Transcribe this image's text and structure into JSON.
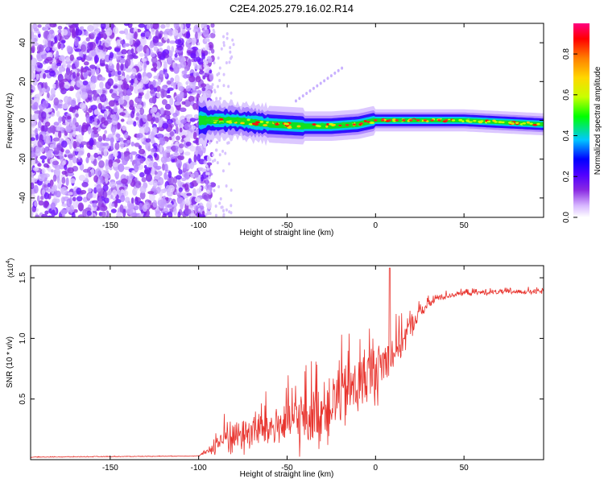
{
  "title": "C2E4.2025.279.16.02.R14",
  "chart_data": [
    {
      "type": "heatmap",
      "name": "spectrogram",
      "xlabel": "Height of straight line (km)",
      "ylabel": "Frequency (Hz)",
      "xlim": [
        -195,
        95
      ],
      "ylim": [
        -50,
        50
      ],
      "xticks": [
        -150,
        -100,
        -50,
        0,
        50
      ],
      "xtick_labels": [
        "-150",
        "-100",
        "-50",
        "0",
        "50"
      ],
      "yticks": [
        -40,
        -20,
        0,
        20,
        40
      ],
      "ytick_labels": [
        "-40",
        "-20",
        "0",
        "20",
        "40"
      ],
      "noise_region_x": [
        -195,
        -100
      ],
      "line_center_freq": [
        {
          "x": -100,
          "f": 0
        },
        {
          "x": -80,
          "f": 0
        },
        {
          "x": -60,
          "f": -2
        },
        {
          "x": -40,
          "f": -3
        },
        {
          "x": -25,
          "f": -3
        },
        {
          "x": -10,
          "f": -2
        },
        {
          "x": 0,
          "f": 0
        },
        {
          "x": 20,
          "f": 0
        },
        {
          "x": 50,
          "f": 0
        },
        {
          "x": 94,
          "f": -2
        }
      ],
      "colorbar": {
        "label": "Normalized spectral amplitude",
        "range": [
          0,
          0.95
        ],
        "ticks": [
          0.0,
          0.2,
          0.4,
          0.6,
          0.8
        ],
        "tick_labels": [
          "0.0",
          "0.2",
          "0.4",
          "0.6",
          "0.8"
        ],
        "colors": [
          "#ffffff",
          "#d8b8ff",
          "#8a2be2",
          "#5000ff",
          "#0000ff",
          "#00c8ff",
          "#00ff00",
          "#c8ff00",
          "#ffd700",
          "#ff8000",
          "#ff0000",
          "#ff0080"
        ]
      }
    },
    {
      "type": "line",
      "name": "snr",
      "xlabel": "Height of straight line (km)",
      "ylabel": "SNR (10 * v/v)",
      "yscale_label": "(x10",
      "yscale_exp": "4",
      "yscale_close": ")",
      "xlim": [
        -195,
        95
      ],
      "ylim": [
        0,
        1.6
      ],
      "xticks": [
        -150,
        -100,
        -50,
        0,
        50
      ],
      "xtick_labels": [
        "-150",
        "-100",
        "-50",
        "0",
        "50"
      ],
      "yticks": [
        0.5,
        1.0,
        1.5
      ],
      "ytick_labels": [
        "0.5",
        "1.0",
        "1.5"
      ],
      "color": "#e8332d",
      "envelope": [
        {
          "x": -195,
          "base": 0.02,
          "spread": 0.005
        },
        {
          "x": -100,
          "base": 0.03,
          "spread": 0.005
        },
        {
          "x": -95,
          "base": 0.06,
          "spread": 0.04
        },
        {
          "x": -85,
          "base": 0.15,
          "spread": 0.25
        },
        {
          "x": -60,
          "base": 0.22,
          "spread": 0.35
        },
        {
          "x": -40,
          "base": 0.28,
          "spread": 0.5
        },
        {
          "x": -25,
          "base": 0.4,
          "spread": 0.55
        },
        {
          "x": -10,
          "base": 0.55,
          "spread": 0.55
        },
        {
          "x": 5,
          "base": 0.75,
          "spread": 0.45
        },
        {
          "x": 15,
          "base": 0.95,
          "spread": 0.25
        },
        {
          "x": 25,
          "base": 1.2,
          "spread": 0.12
        },
        {
          "x": 35,
          "base": 1.33,
          "spread": 0.06
        },
        {
          "x": 50,
          "base": 1.37,
          "spread": 0.04
        },
        {
          "x": 80,
          "base": 1.38,
          "spread": 0.04
        },
        {
          "x": 95,
          "base": 1.38,
          "spread": 0.05
        }
      ],
      "peak": {
        "x": 8,
        "y": 1.58
      }
    }
  ]
}
